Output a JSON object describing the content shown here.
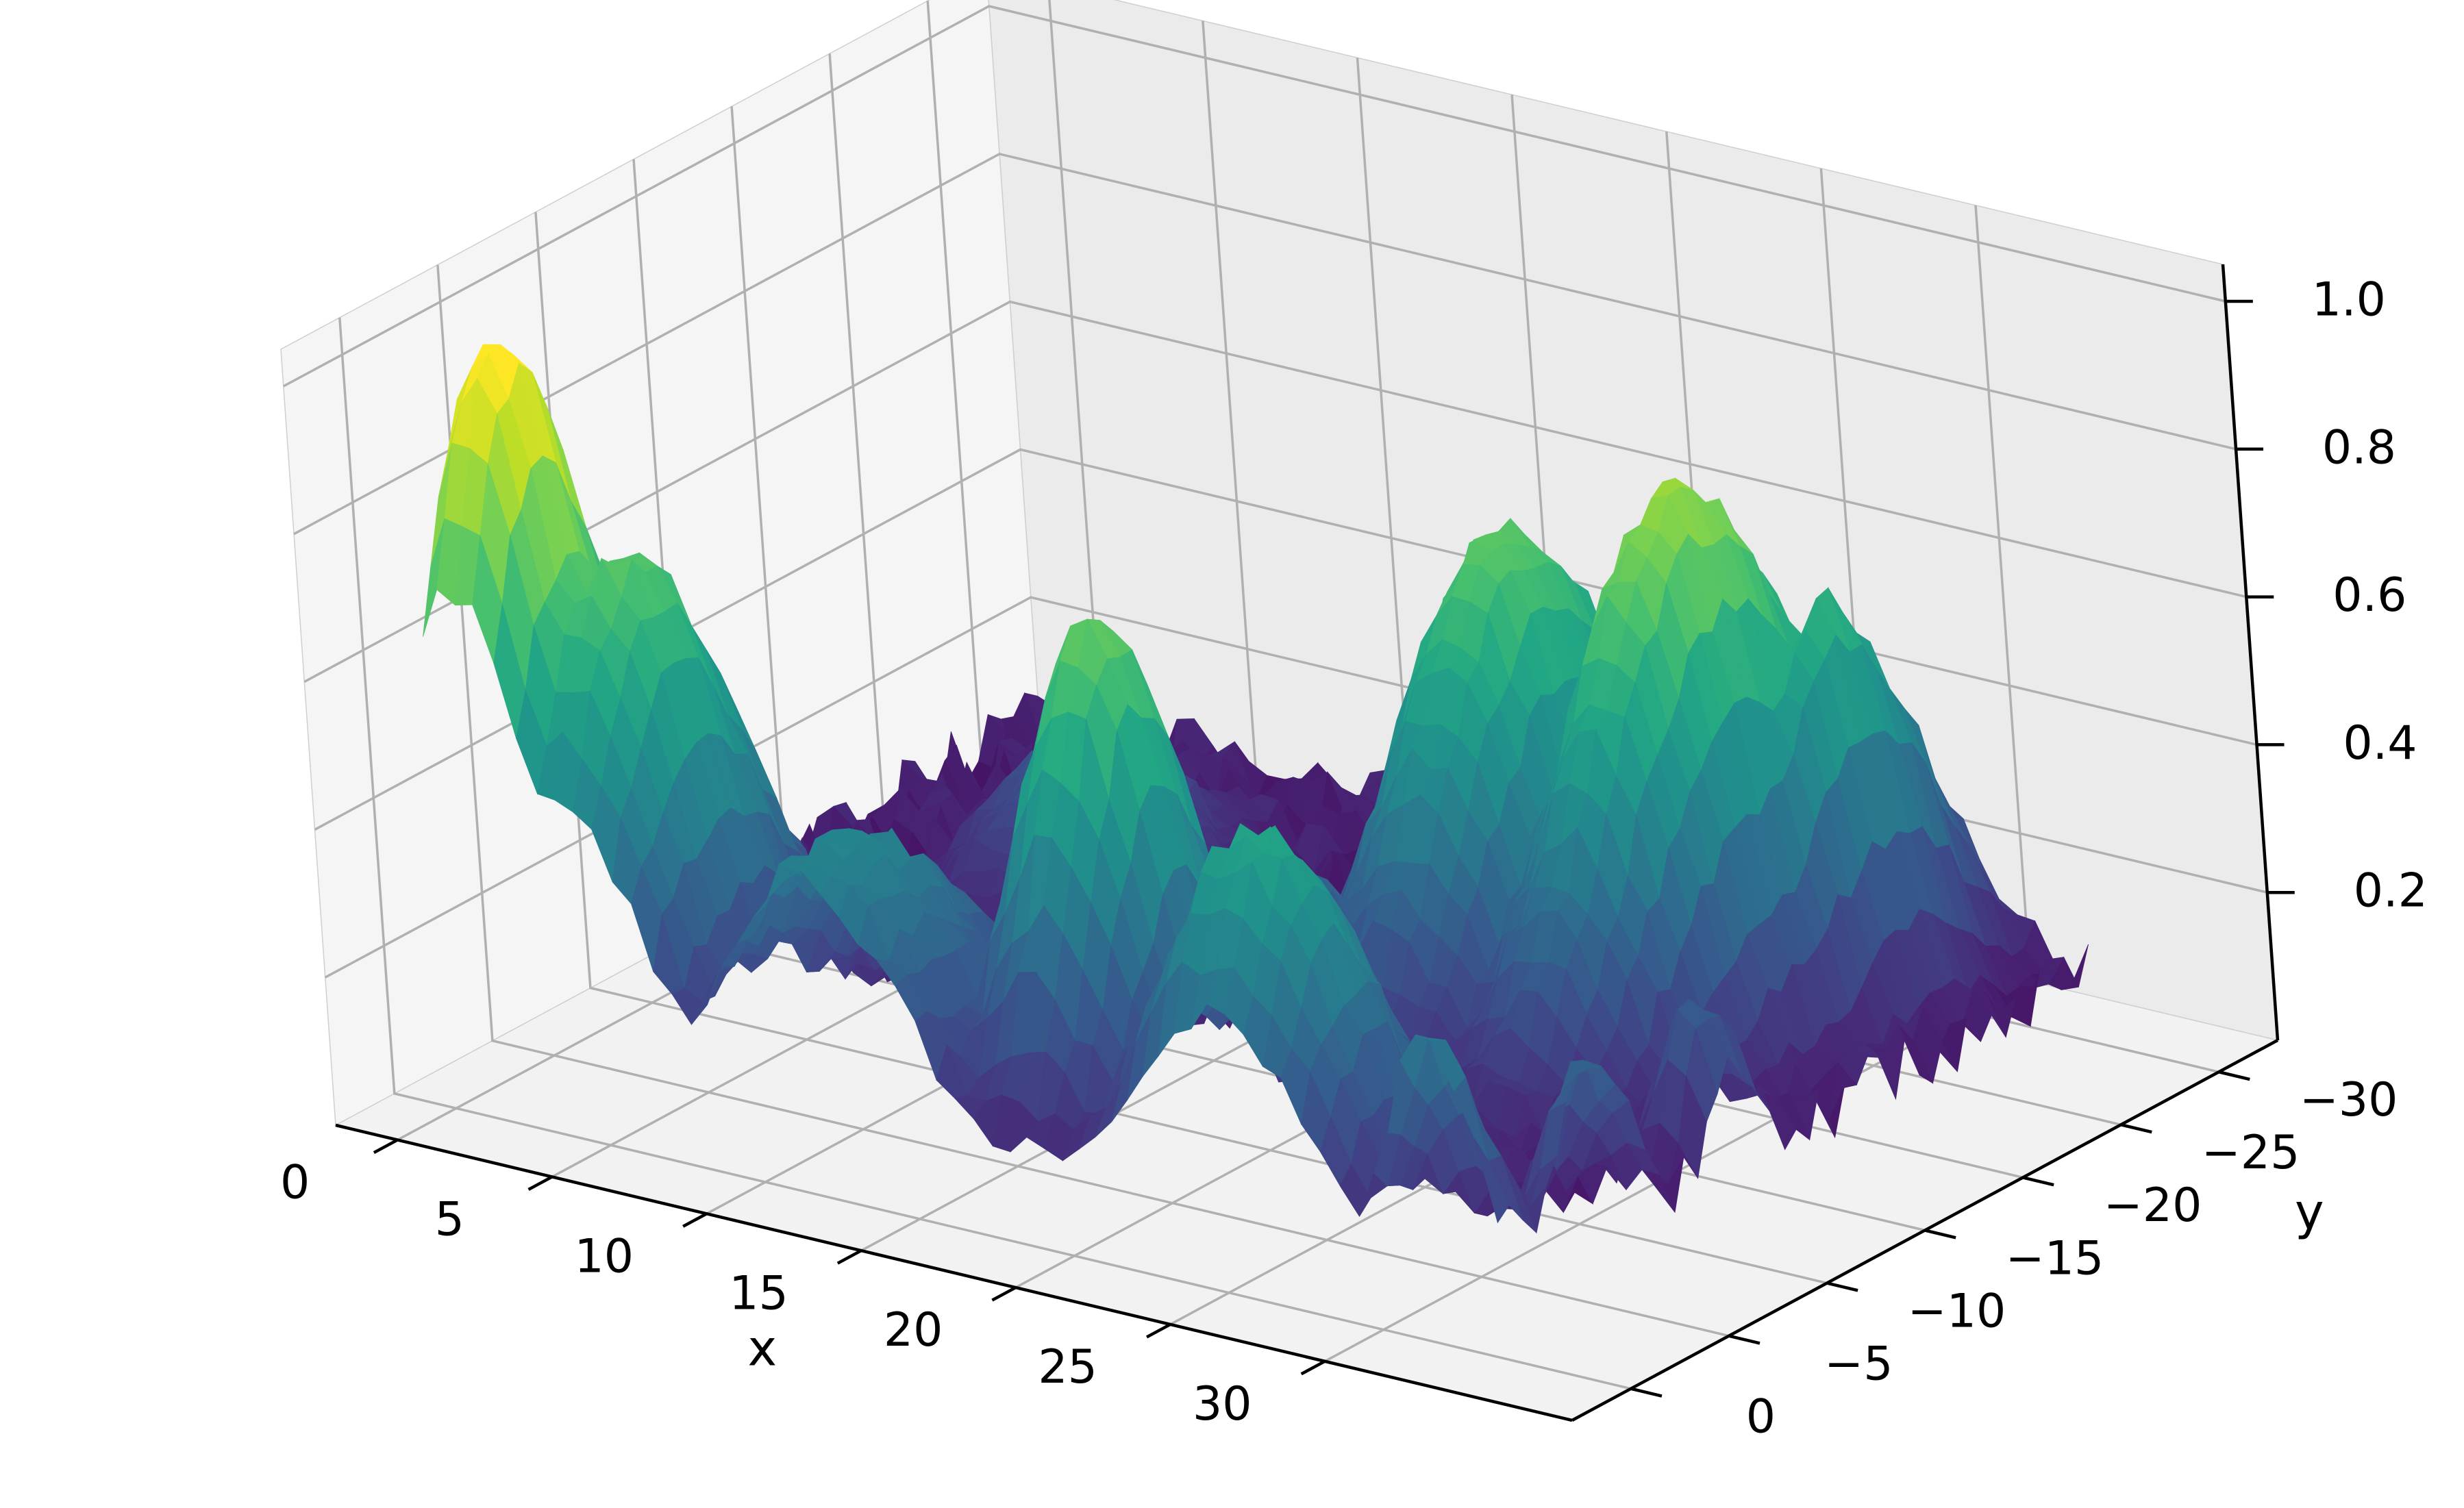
{
  "chart_data": {
    "type": "surface",
    "title": "",
    "xlabel": "x",
    "ylabel": "y",
    "zlabel": "",
    "xlim": [
      -2,
      38
    ],
    "ylim": [
      -33,
      3
    ],
    "zlim": [
      0.0,
      1.05
    ],
    "xticks": [
      0,
      5,
      10,
      15,
      20,
      25,
      30
    ],
    "xtick_labels": [
      "0",
      "5",
      "10",
      "15",
      "20",
      "25",
      "30"
    ],
    "yticks": [
      0,
      -5,
      -10,
      -15,
      -20,
      -25,
      -30
    ],
    "ytick_labels": [
      "0",
      "−5",
      "−10",
      "−15",
      "−20",
      "−25",
      "−30"
    ],
    "zticks": [
      0.2,
      0.4,
      0.6,
      0.8,
      1.0
    ],
    "ztick_labels": [
      "0.2",
      "0.4",
      "0.6",
      "0.8",
      "1.0"
    ],
    "colormap": "viridis",
    "grid": true,
    "surface_features": [
      {
        "x": 1,
        "y": -3,
        "z": 0.97,
        "sx": 2.2,
        "sy": 3.5
      },
      {
        "x": 4,
        "y": -4,
        "z": 0.7,
        "sx": 2.5,
        "sy": 4.0
      },
      {
        "x": 12,
        "y": -2,
        "z": 0.42,
        "sx": 3.0,
        "sy": 5.0
      },
      {
        "x": 18,
        "y": -6,
        "z": 0.72,
        "sx": 2.2,
        "sy": 3.0
      },
      {
        "x": 25,
        "y": -3,
        "z": 0.55,
        "sx": 3.0,
        "sy": 3.0
      },
      {
        "x": 23,
        "y": -19,
        "z": 0.7,
        "sx": 2.6,
        "sy": 5.0
      },
      {
        "x": 28,
        "y": -20,
        "z": 0.8,
        "sx": 2.2,
        "sy": 5.5
      },
      {
        "x": 30,
        "y": -24,
        "z": 0.6,
        "sx": 1.5,
        "sy": 4.0
      },
      {
        "x": 32,
        "y": 0,
        "z": 0.38,
        "sx": 1.5,
        "sy": 2.0
      },
      {
        "x": 34,
        "y": -5,
        "z": 0.3,
        "sx": 1.4,
        "sy": 2.0
      },
      {
        "x": 33,
        "y": -12,
        "z": 0.28,
        "sx": 1.2,
        "sy": 1.5
      },
      {
        "x": 20,
        "y": -12,
        "z": 0.32,
        "sx": 2.0,
        "sy": 2.0
      },
      {
        "x": 8,
        "y": -20,
        "z": 0.25,
        "sx": 2.5,
        "sy": 4.0
      }
    ],
    "noise_level": 0.1
  }
}
